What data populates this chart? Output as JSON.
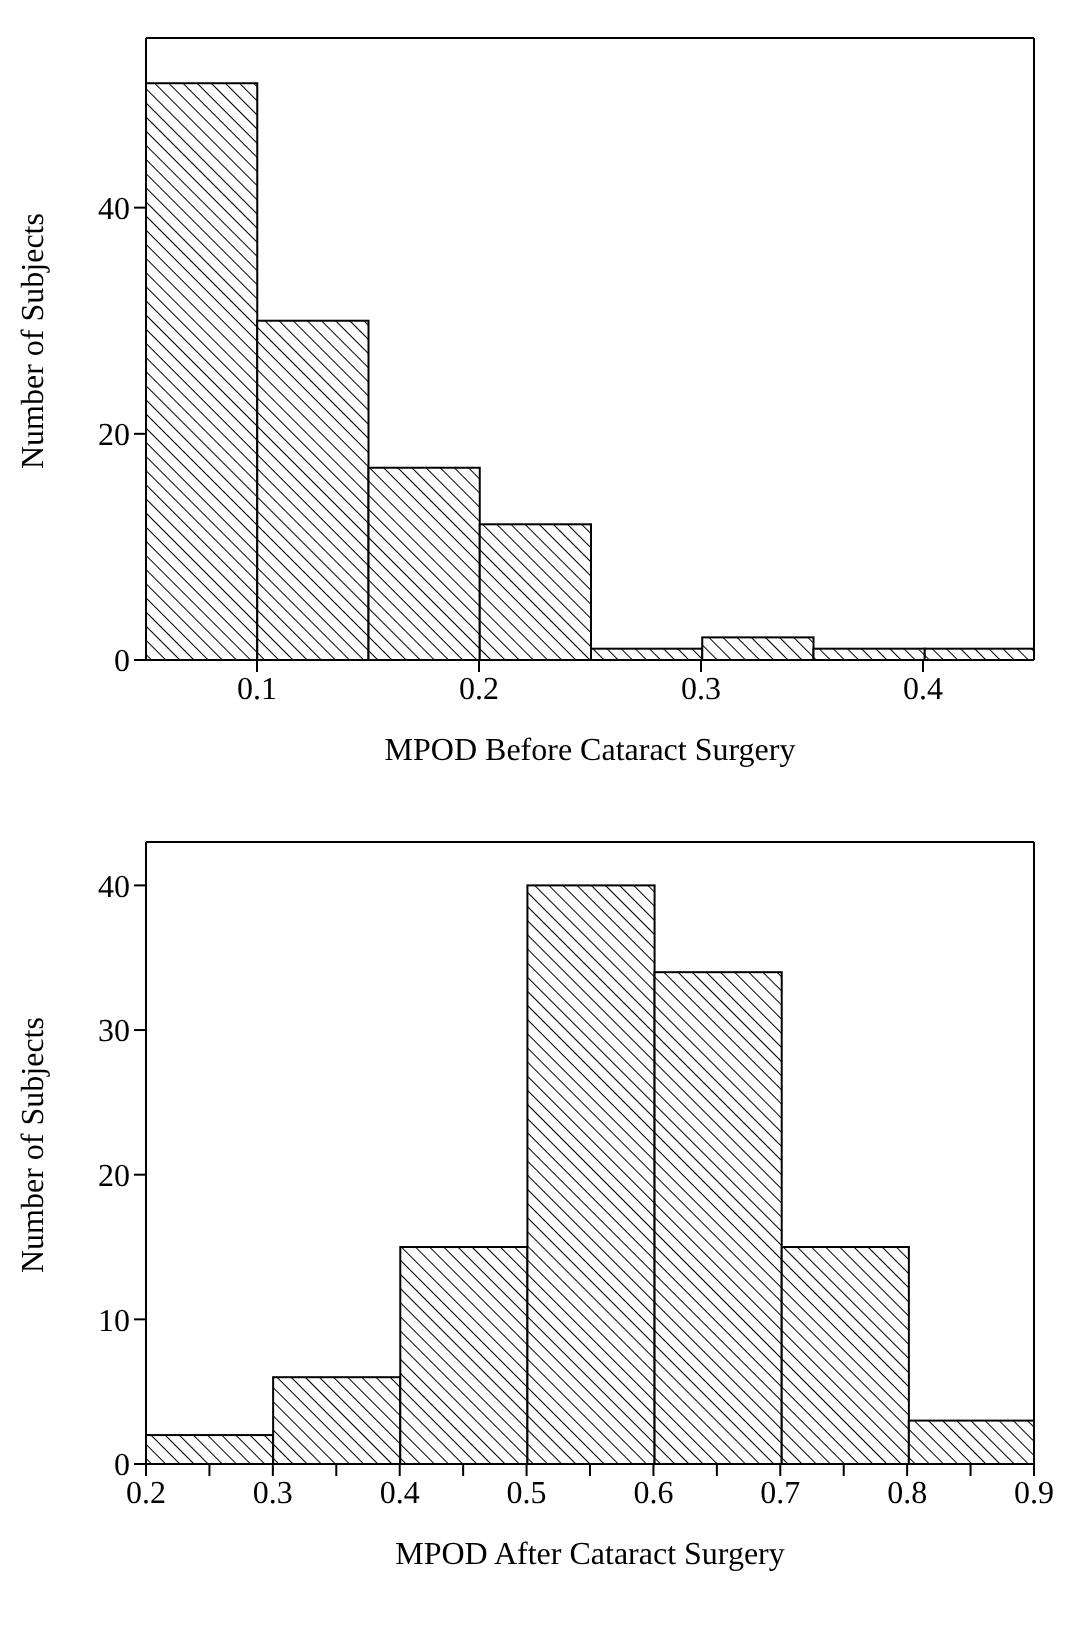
{
  "chart_data": [
    {
      "type": "histogram",
      "xlabel": "MPOD Before Cataract Surgery",
      "ylabel": "Number of Subjects",
      "bins": [
        0.05,
        0.1,
        0.15,
        0.2,
        0.25,
        0.3,
        0.35,
        0.4,
        0.45
      ],
      "values": [
        51,
        30,
        17,
        12,
        1,
        2,
        1,
        1
      ],
      "color": "#000000",
      "xlim": [
        0.05,
        0.45
      ],
      "xticks": [
        0.1,
        0.2,
        0.3,
        0.4
      ],
      "ylim": [
        0,
        55
      ],
      "yticks": [
        0,
        20,
        40
      ]
    },
    {
      "type": "histogram",
      "xlabel": "MPOD After Cataract Surgery",
      "ylabel": "Number of Subjects",
      "bins": [
        0.2,
        0.3,
        0.4,
        0.5,
        0.6,
        0.7,
        0.8,
        0.9
      ],
      "values": [
        2,
        6,
        15,
        40,
        34,
        15,
        3
      ],
      "color": "#000000",
      "xlim": [
        0.2,
        0.9
      ],
      "xticks": [
        0.2,
        {
          "value": 0.25,
          "label": null
        },
        0.3,
        {
          "value": 0.35,
          "label": null
        },
        0.4,
        {
          "value": 0.45,
          "label": null
        },
        0.5,
        {
          "value": 0.55,
          "label": null
        },
        0.6,
        {
          "value": 0.65,
          "label": null
        },
        0.7,
        {
          "value": 0.75,
          "label": null
        },
        0.8,
        {
          "value": 0.85,
          "label": null
        },
        0.9
      ],
      "ylim": [
        0,
        43
      ],
      "yticks": [
        0,
        10,
        20,
        30,
        40
      ]
    }
  ]
}
